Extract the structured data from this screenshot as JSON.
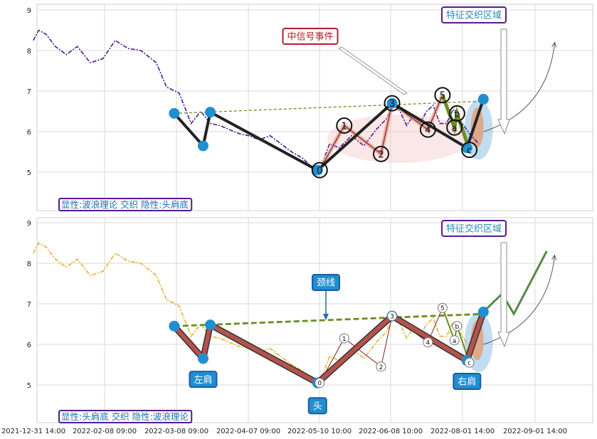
{
  "chart_data": [
    {
      "type": "line",
      "panel": "top",
      "ylim": [
        4.1,
        9.2
      ],
      "yticks": [
        5,
        6,
        7,
        8,
        9
      ],
      "grid": true,
      "series": [
        {
          "kind": "price",
          "color": "#4b1a8c",
          "x": [
            "2021-12-31",
            "2022-01-03",
            "2022-01-07",
            "2022-01-12",
            "2022-01-18",
            "2022-01-24",
            "2022-01-31",
            "2022-02-07",
            "2022-02-12",
            "2022-02-17",
            "2022-02-22",
            "2022-02-28",
            "2022-03-04",
            "2022-03-09",
            "2022-03-14",
            "2022-03-18",
            "2022-03-22",
            "2022-03-26",
            "2022-03-30",
            "2022-04-03",
            "2022-04-07",
            "2022-04-12",
            "2022-04-17",
            "2022-04-22",
            "2022-04-27",
            "2022-05-02",
            "2022-05-06",
            "2022-05-10",
            "2022-05-14",
            "2022-05-18",
            "2022-05-23",
            "2022-05-28",
            "2022-06-02",
            "2022-06-06",
            "2022-06-10",
            "2022-06-15",
            "2022-06-20",
            "2022-06-25",
            "2022-06-30",
            "2022-07-05",
            "2022-07-10",
            "2022-07-15",
            "2022-07-20",
            "2022-07-25",
            "2022-07-30",
            "2022-08-04",
            "2022-08-08"
          ],
          "values": [
            8.25,
            8.5,
            8.4,
            8.1,
            7.9,
            8.1,
            7.7,
            7.8,
            8.25,
            8.05,
            8.0,
            7.7,
            7.1,
            6.95,
            6.2,
            6.5,
            6.2,
            6.15,
            6.05,
            5.95,
            5.9,
            5.8,
            5.9,
            5.7,
            5.5,
            5.35,
            5.15,
            5.05,
            5.7,
            5.6,
            5.9,
            5.65,
            6.05,
            6.3,
            6.65,
            6.5,
            6.15,
            6.4,
            6.2,
            6.5,
            6.65,
            6.2,
            6.2,
            6.55,
            6.3,
            5.95,
            5.7
          ]
        }
      ],
      "wave_points": [
        {
          "label": "0",
          "x": "2022-05-10",
          "y": 5.05
        },
        {
          "label": "1",
          "x": "2022-05-20",
          "y": 6.15
        },
        {
          "label": "2",
          "x": "2022-06-04",
          "y": 5.45
        },
        {
          "label": "3",
          "x": "2022-06-09",
          "y": 6.7
        },
        {
          "label": "4",
          "x": "2022-07-06",
          "y": 6.05
        },
        {
          "label": "5",
          "x": "2022-07-17",
          "y": 6.9
        },
        {
          "label": "a",
          "x": "2022-07-26",
          "y": 6.1
        },
        {
          "label": "b",
          "x": "2022-07-28",
          "y": 6.45
        },
        {
          "label": "c",
          "x": "2022-08-04",
          "y": 5.55
        }
      ],
      "pattern_points": [
        {
          "x": "2022-03-07",
          "y": 6.45
        },
        {
          "x": "2022-03-19",
          "y": 5.65
        },
        {
          "x": "2022-03-22",
          "y": 6.48
        },
        {
          "x": "2022-05-09",
          "y": 5.05
        },
        {
          "x": "2022-06-09",
          "y": 6.7
        },
        {
          "x": "2022-08-03",
          "y": 5.6
        },
        {
          "x": "2022-08-10",
          "y": 6.8
        }
      ],
      "neckline": [
        {
          "x": "2022-03-07",
          "y": 6.45
        },
        {
          "x": "2022-08-10",
          "y": 6.75
        }
      ],
      "annotations": [
        {
          "text": "中信号事件",
          "box_color": "#b0202a",
          "text_color": "#b0202a"
        },
        {
          "text": "特征交织区域",
          "box_color": "#5a1a8c",
          "text_color": "#2a8ab0"
        }
      ],
      "caption": "显性:波浪理论 交织 隐性:头肩底"
    },
    {
      "type": "line",
      "panel": "bottom",
      "ylim": [
        4.1,
        9.2
      ],
      "yticks": [
        5,
        6,
        7,
        8,
        9
      ],
      "grid": true,
      "xticks": [
        "2021-12-31 14:00",
        "2022-02-08 09:00",
        "2022-03-08 09:00",
        "2022-04-07 09:00",
        "2022-05-10 10:00",
        "2022-06-08 10:00",
        "2022-08-01 14:00",
        "2022-09-01 14:00"
      ],
      "series": [
        {
          "kind": "price",
          "color": "#e8b030",
          "x": [
            "2021-12-31",
            "2022-01-03",
            "2022-01-07",
            "2022-01-12",
            "2022-01-18",
            "2022-01-24",
            "2022-01-31",
            "2022-02-07",
            "2022-02-12",
            "2022-02-17",
            "2022-02-22",
            "2022-02-28",
            "2022-03-04",
            "2022-03-09",
            "2022-03-14",
            "2022-03-18",
            "2022-03-22",
            "2022-03-26",
            "2022-03-30",
            "2022-04-03",
            "2022-04-07",
            "2022-04-12",
            "2022-04-17",
            "2022-04-22",
            "2022-04-27",
            "2022-05-02",
            "2022-05-06",
            "2022-05-10",
            "2022-05-14",
            "2022-05-18",
            "2022-05-23",
            "2022-05-28",
            "2022-06-02",
            "2022-06-06",
            "2022-06-10",
            "2022-06-15",
            "2022-06-20",
            "2022-06-25",
            "2022-06-30",
            "2022-07-05",
            "2022-07-10",
            "2022-07-15",
            "2022-07-20",
            "2022-07-25",
            "2022-07-30",
            "2022-08-04",
            "2022-08-08"
          ],
          "values": [
            8.25,
            8.5,
            8.4,
            8.1,
            7.9,
            8.1,
            7.7,
            7.8,
            8.25,
            8.05,
            8.0,
            7.7,
            7.1,
            6.95,
            6.2,
            6.5,
            6.2,
            6.15,
            6.05,
            5.95,
            5.9,
            5.8,
            5.9,
            5.7,
            5.5,
            5.35,
            5.15,
            5.05,
            5.7,
            5.6,
            5.9,
            5.65,
            6.05,
            6.3,
            6.65,
            6.5,
            6.15,
            6.4,
            6.2,
            6.5,
            6.65,
            6.2,
            6.2,
            6.55,
            6.3,
            5.95,
            5.7
          ]
        }
      ],
      "wave_points": [
        {
          "label": "0",
          "x": "2022-05-10",
          "y": 5.05
        },
        {
          "label": "1",
          "x": "2022-05-20",
          "y": 6.15
        },
        {
          "label": "2",
          "x": "2022-06-04",
          "y": 5.45
        },
        {
          "label": "3",
          "x": "2022-06-09",
          "y": 6.7
        },
        {
          "label": "4",
          "x": "2022-07-06",
          "y": 6.05
        },
        {
          "label": "5",
          "x": "2022-07-17",
          "y": 6.9
        },
        {
          "label": "a",
          "x": "2022-07-26",
          "y": 6.1
        },
        {
          "label": "b",
          "x": "2022-07-28",
          "y": 6.45
        },
        {
          "label": "c",
          "x": "2022-08-04",
          "y": 5.55
        }
      ],
      "pattern_points": [
        {
          "x": "2022-03-07",
          "y": 6.45
        },
        {
          "x": "2022-03-19",
          "y": 5.65
        },
        {
          "x": "2022-03-22",
          "y": 6.48
        },
        {
          "x": "2022-05-09",
          "y": 5.05
        },
        {
          "x": "2022-06-09",
          "y": 6.7
        },
        {
          "x": "2022-08-03",
          "y": 5.6
        },
        {
          "x": "2022-08-10",
          "y": 6.8
        }
      ],
      "projection": [
        {
          "x": "2022-08-10",
          "y": 6.8
        },
        {
          "x": "2022-08-18",
          "y": 7.25
        },
        {
          "x": "2022-08-23",
          "y": 6.75
        },
        {
          "x": "2022-09-06",
          "y": 8.3
        }
      ],
      "neckline": [
        {
          "x": "2022-03-07",
          "y": 6.45
        },
        {
          "x": "2022-08-10",
          "y": 6.75
        }
      ],
      "annotations": [
        {
          "text": "颈线",
          "box_color": "#1f5aa0",
          "text_color": "#ffffff"
        },
        {
          "text": "特征交织区域",
          "box_color": "#5a1a8c",
          "text_color": "#2a8ab0"
        }
      ],
      "pattern_labels": [
        {
          "text": "左肩",
          "x": "2022-03-19",
          "y": 5.05
        },
        {
          "text": "头",
          "x": "2022-05-09",
          "y": 4.4
        },
        {
          "text": "右肩",
          "x": "2022-08-03",
          "y": 5.0
        }
      ],
      "caption": "显性:头肩底 交织 隐性:波浪理论"
    }
  ]
}
